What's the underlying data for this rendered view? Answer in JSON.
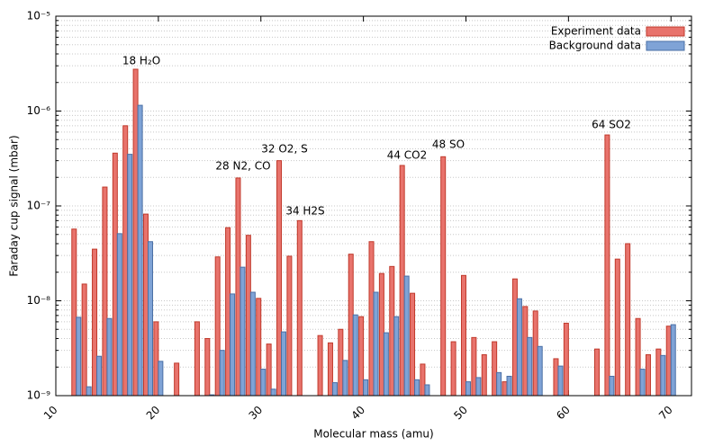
{
  "chart_data": {
    "type": "bar",
    "xlabel": "Molecular mass (amu)",
    "ylabel": "Faraday cup signal (mbar)",
    "ylog": true,
    "grid": true,
    "legend": "upper right",
    "x": [
      12,
      13,
      14,
      15,
      16,
      17,
      18,
      19,
      20,
      22,
      24,
      25,
      26,
      27,
      28,
      29,
      30,
      31,
      32,
      33,
      34,
      36,
      37,
      38,
      39,
      40,
      41,
      42,
      43,
      44,
      45,
      46,
      48,
      49,
      50,
      51,
      52,
      53,
      54,
      55,
      56,
      57,
      59,
      60,
      63,
      64,
      65,
      66,
      67,
      68,
      69,
      70
    ],
    "series": [
      {
        "name": "Experiment data",
        "color": "#e8736c",
        "edgecolor": "#c0392b",
        "values": [
          5.7e-08,
          1.5e-08,
          3.5e-08,
          1.58e-07,
          3.6e-07,
          7e-07,
          2.76e-06,
          8.2e-08,
          6e-09,
          2.2e-09,
          6e-09,
          4e-09,
          2.9e-08,
          5.9e-08,
          1.97e-07,
          4.9e-08,
          1.06e-08,
          3.5e-09,
          3e-07,
          2.95e-08,
          7e-08,
          4.3e-09,
          3.6e-09,
          5e-09,
          3.1e-08,
          6.8e-09,
          4.2e-08,
          1.94e-08,
          2.3e-08,
          2.67e-07,
          1.2e-08,
          2.15e-09,
          3.3e-07,
          3.7e-09,
          1.85e-08,
          4.1e-09,
          2.7e-09,
          3.7e-09,
          1.4e-09,
          1.7e-08,
          8.7e-09,
          7.8e-09,
          2.45e-09,
          5.8e-09,
          3.1e-09,
          5.6e-07,
          2.75e-08,
          4e-08,
          6.5e-09,
          2.7e-09,
          3.1e-09,
          5.4e-09
        ]
      },
      {
        "name": "Background data",
        "color": "#7fa3d6",
        "edgecolor": "#4a6fa5",
        "values": [
          6.7e-09,
          1.24e-09,
          2.6e-09,
          6.5e-09,
          5.1e-08,
          3.5e-07,
          1.15e-06,
          4.2e-08,
          2.3e-09,
          null,
          null,
          1.02e-09,
          3e-09,
          1.18e-08,
          2.26e-08,
          1.23e-08,
          1.9e-09,
          1.17e-09,
          4.7e-09,
          null,
          null,
          null,
          1.37e-09,
          2.35e-09,
          7.1e-09,
          1.47e-09,
          1.23e-08,
          4.6e-09,
          6.8e-09,
          1.82e-08,
          1.47e-09,
          1.3e-09,
          null,
          null,
          1.4e-09,
          1.55e-09,
          null,
          1.75e-09,
          1.6e-09,
          1.05e-08,
          4.1e-09,
          3.3e-09,
          2.05e-09,
          null,
          null,
          1.6e-09,
          null,
          null,
          1.9e-09,
          null,
          2.65e-09,
          5.6e-09
        ]
      }
    ],
    "annotations": [
      "18 H₂O",
      "28 N2, CO",
      "32 O2, S",
      "34 H2S",
      "44 CO2",
      "48 SO",
      "64 SO2"
    ],
    "xlim": [
      10,
      72
    ],
    "xticks": [
      10,
      20,
      30,
      40,
      50,
      60,
      70
    ],
    "ylim": [
      1e-09,
      1e-05
    ],
    "yticks": [
      {
        "value": 1e-09,
        "label": "10⁻⁹"
      },
      {
        "value": 1e-08,
        "label": "10⁻⁸"
      },
      {
        "value": 1e-07,
        "label": "10⁻⁷"
      },
      {
        "value": 1e-06,
        "label": "10⁻⁶"
      },
      {
        "value": 1e-05,
        "label": "10⁻⁵"
      }
    ],
    "yticks_minor": [
      2e-09,
      3e-09,
      4e-09,
      5e-09,
      6e-09,
      7e-09,
      8e-09,
      9e-09,
      2e-08,
      3e-08,
      4e-08,
      5e-08,
      6e-08,
      7e-08,
      8e-08,
      9e-08,
      2e-07,
      3e-07,
      4e-07,
      5e-07,
      6e-07,
      7e-07,
      8e-07,
      9e-07,
      2e-06,
      3e-06,
      4e-06,
      5e-06,
      6e-06,
      7e-06,
      8e-06,
      9e-06
    ]
  }
}
